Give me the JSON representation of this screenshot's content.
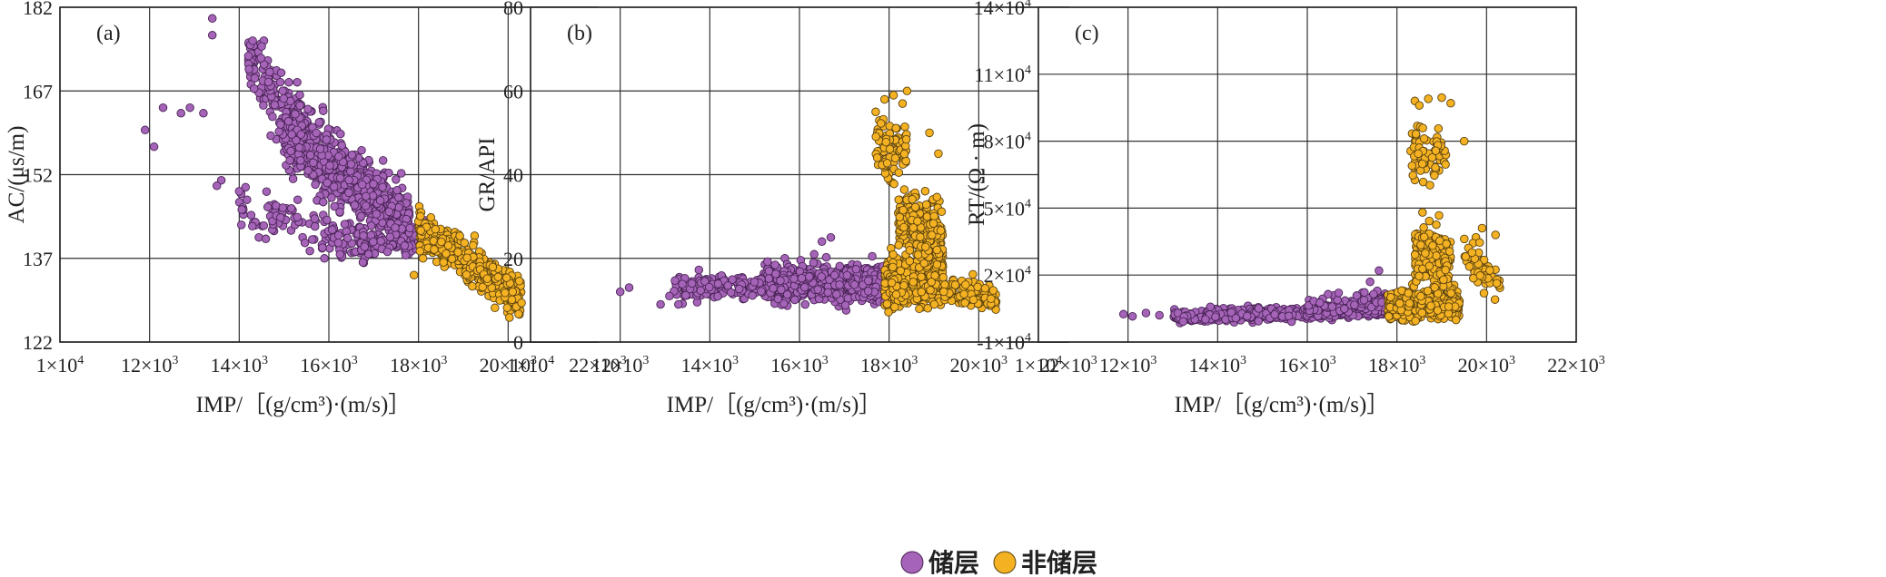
{
  "colors": {
    "reservoir": "#a564b8",
    "reservoir_edge": "#4a2456",
    "non_reservoir": "#f4b223",
    "non_reservoir_edge": "#5a4210",
    "grid": "#333333"
  },
  "legend": {
    "reservoir_label": "储层",
    "non_reservoir_label": "非储层"
  },
  "chart_data": [
    {
      "type": "scatter",
      "panel_label": "(a)",
      "xlabel": "IMP/［(g/cm³)·(m/s)］",
      "ylabel": "AC/(μs/m)",
      "xlim": [
        10000,
        22000
      ],
      "ylim": [
        122,
        182
      ],
      "x_tick_values": [
        10000,
        12000,
        14000,
        16000,
        18000,
        20000,
        22000
      ],
      "x_tick_labels": [
        {
          "base": "1×10",
          "sup": "4"
        },
        {
          "base": "12×10",
          "sup": "3"
        },
        {
          "base": "14×10",
          "sup": "3"
        },
        {
          "base": "16×10",
          "sup": "3"
        },
        {
          "base": "18×10",
          "sup": "3"
        },
        {
          "base": "20×10",
          "sup": "3"
        },
        {
          "base": "22×10",
          "sup": "3"
        }
      ],
      "y_tick_values": [
        122,
        137,
        152,
        167,
        182
      ],
      "y_tick_labels": [
        {
          "base": "122",
          "sup": ""
        },
        {
          "base": "137",
          "sup": ""
        },
        {
          "base": "152",
          "sup": ""
        },
        {
          "base": "167",
          "sup": ""
        },
        {
          "base": "182",
          "sup": ""
        }
      ],
      "series": [
        {
          "name": "储层",
          "clusters": [
            {
              "count": 750,
              "x_range": [
                15000,
                17800
              ],
              "y_at": [
                [
                  15000,
                  160
                ],
                [
                  17800,
                  143
                ]
              ],
              "spread": 6
            },
            {
              "count": 160,
              "x_range": [
                14200,
                15400
              ],
              "y_at": [
                [
                  14200,
                  172
                ],
                [
                  15400,
                  160
                ]
              ],
              "spread": 6
            },
            {
              "count": 110,
              "x_range": [
                14000,
                16800
              ],
              "y_at": [
                [
                  14000,
                  146
                ],
                [
                  16800,
                  140
                ]
              ],
              "spread": 4
            },
            {
              "count": 120,
              "x_range": [
                16200,
                18200
              ],
              "y_at": [
                [
                  16200,
                  139
                ],
                [
                  18200,
                  141
                ]
              ],
              "spread": 3
            }
          ],
          "points": [
            [
              13400,
              180
            ],
            [
              13400,
              177
            ],
            [
              11900,
              160
            ],
            [
              12100,
              157
            ],
            [
              12300,
              164
            ],
            [
              12700,
              163
            ],
            [
              12900,
              164
            ],
            [
              13200,
              163
            ],
            [
              13600,
              151
            ],
            [
              13500,
              150
            ],
            [
              14000,
              149
            ],
            [
              14300,
              176
            ],
            [
              14500,
              175
            ],
            [
              15900,
              137
            ]
          ]
        },
        {
          "name": "非储层",
          "clusters": [
            {
              "count": 560,
              "x_range": [
                18000,
                20300
              ],
              "y_at": [
                [
                  18000,
                  142
                ],
                [
                  20300,
                  130
                ]
              ],
              "spread": 3.2
            }
          ],
          "points": [
            [
              17900,
              134
            ],
            [
              18100,
              137
            ],
            [
              19200,
              132
            ],
            [
              20300,
              129
            ],
            [
              20100,
              131
            ]
          ]
        }
      ]
    },
    {
      "type": "scatter",
      "panel_label": "(b)",
      "xlabel": "IMP/［(g/cm³)·(m/s)］",
      "ylabel": "GR/API",
      "xlim": [
        10000,
        22000
      ],
      "ylim": [
        0,
        80
      ],
      "x_tick_values": [
        10000,
        12000,
        14000,
        16000,
        18000,
        20000,
        22000
      ],
      "x_tick_labels": [
        {
          "base": "1×10",
          "sup": "4"
        },
        {
          "base": "12×10",
          "sup": "3"
        },
        {
          "base": "14×10",
          "sup": "3"
        },
        {
          "base": "16×10",
          "sup": "3"
        },
        {
          "base": "18×10",
          "sup": "3"
        },
        {
          "base": "20×10",
          "sup": "3"
        },
        {
          "base": "22×10",
          "sup": "3"
        }
      ],
      "y_tick_values": [
        0,
        20,
        40,
        60,
        80
      ],
      "y_tick_labels": [
        {
          "base": "0",
          "sup": ""
        },
        {
          "base": "20",
          "sup": ""
        },
        {
          "base": "40",
          "sup": ""
        },
        {
          "base": "60",
          "sup": ""
        },
        {
          "base": "80",
          "sup": ""
        }
      ],
      "series": [
        {
          "name": "储层",
          "clusters": [
            {
              "count": 900,
              "x_range": [
                15200,
                18200
              ],
              "y_at": [
                [
                  15200,
                  14
                ],
                [
                  18200,
                  14
                ]
              ],
              "spread": 4
            },
            {
              "count": 150,
              "x_range": [
                13200,
                15200
              ],
              "y_at": [
                [
                  13200,
                  13
                ],
                [
                  15200,
                  14
                ]
              ],
              "spread": 3
            }
          ],
          "points": [
            [
              12000,
              12
            ],
            [
              12200,
              13
            ],
            [
              12900,
              9
            ],
            [
              13100,
              11
            ],
            [
              13300,
              9
            ],
            [
              13600,
              14
            ],
            [
              16700,
              25
            ],
            [
              16500,
              24
            ]
          ]
        },
        {
          "name": "非储层",
          "clusters": [
            {
              "count": 520,
              "x_range": [
                17900,
                19200
              ],
              "y_at": [
                [
                  17900,
                  14
                ],
                [
                  19200,
                  14
                ]
              ],
              "spread": 5
            },
            {
              "count": 300,
              "x_range": [
                18200,
                19200
              ],
              "y_at": [
                [
                  18200,
                  30
                ],
                [
                  19200,
                  24
                ]
              ],
              "spread": 8
            },
            {
              "count": 90,
              "x_range": [
                17700,
                18400
              ],
              "y_at": [
                [
                  17700,
                  46
                ],
                [
                  18400,
                  46
                ]
              ],
              "spread": 7
            },
            {
              "count": 130,
              "x_range": [
                19200,
                20400
              ],
              "y_at": [
                [
                  19200,
                  13
                ],
                [
                  20400,
                  10
                ]
              ],
              "spread": 3
            }
          ],
          "points": [
            [
              17900,
              58
            ],
            [
              18100,
              59
            ],
            [
              18400,
              60
            ],
            [
              18300,
              57
            ],
            [
              17700,
              55
            ],
            [
              18900,
              50
            ],
            [
              19100,
              45
            ]
          ]
        }
      ]
    },
    {
      "type": "scatter",
      "panel_label": "(c)",
      "xlabel": "IMP/［(g/cm³)·(m/s)］",
      "ylabel": "RT/(Ω · m)",
      "xlim": [
        10000,
        22000
      ],
      "ylim": [
        -10000,
        140000
      ],
      "x_tick_values": [
        10000,
        12000,
        14000,
        16000,
        18000,
        20000,
        22000
      ],
      "x_tick_labels": [
        {
          "base": "1×10",
          "sup": "4"
        },
        {
          "base": "12×10",
          "sup": "3"
        },
        {
          "base": "14×10",
          "sup": "3"
        },
        {
          "base": "16×10",
          "sup": "3"
        },
        {
          "base": "18×10",
          "sup": "3"
        },
        {
          "base": "20×10",
          "sup": "3"
        },
        {
          "base": "22×10",
          "sup": "3"
        }
      ],
      "y_tick_values": [
        -10000,
        20000,
        50000,
        80000,
        110000,
        140000
      ],
      "y_tick_labels": [
        {
          "base": "-1×10",
          "sup": "4"
        },
        {
          "base": "2×10",
          "sup": "4"
        },
        {
          "base": "5×10",
          "sup": "4"
        },
        {
          "base": "8×10",
          "sup": "4"
        },
        {
          "base": "11×10",
          "sup": "4"
        },
        {
          "base": "14×10",
          "sup": "4"
        }
      ],
      "series": [
        {
          "name": "储层",
          "clusters": [
            {
              "count": 650,
              "x_range": [
                13000,
                17800
              ],
              "y_at": [
                [
                  13000,
                  1500
                ],
                [
                  17800,
                  4000
                ]
              ],
              "spread": 2500
            },
            {
              "count": 250,
              "x_range": [
                16000,
                18200
              ],
              "y_at": [
                [
                  16000,
                  5000
                ],
                [
                  18200,
                  9000
                ]
              ],
              "spread": 4000
            }
          ],
          "points": [
            [
              11900,
              2500
            ],
            [
              12100,
              1500
            ],
            [
              12400,
              3000
            ],
            [
              12700,
              2000
            ],
            [
              16700,
              12000
            ],
            [
              17400,
              17000
            ],
            [
              17600,
              22000
            ]
          ]
        },
        {
          "name": "非储层",
          "clusters": [
            {
              "count": 600,
              "x_range": [
                17800,
                19400
              ],
              "y_at": [
                [
                  17800,
                  6000
                ],
                [
                  19400,
                  7000
                ]
              ],
              "spread": 5500
            },
            {
              "count": 220,
              "x_range": [
                18400,
                19200
              ],
              "y_at": [
                [
                  18400,
                  30000
                ],
                [
                  19200,
                  25000
                ]
              ],
              "spread": 14000
            },
            {
              "count": 70,
              "x_range": [
                18300,
                19100
              ],
              "y_at": [
                [
                  18300,
                  75000
                ],
                [
                  19100,
                  75000
                ]
              ],
              "spread": 12000
            },
            {
              "count": 60,
              "x_range": [
                19500,
                20300
              ],
              "y_at": [
                [
                  19500,
                  30000
                ],
                [
                  20300,
                  15000
                ]
              ],
              "spread": 8000
            }
          ],
          "points": [
            [
              18400,
              98000
            ],
            [
              18700,
              99000
            ],
            [
              19000,
              99500
            ],
            [
              19200,
              97000
            ],
            [
              18500,
              96000
            ],
            [
              19500,
              80000
            ],
            [
              19900,
              41000
            ],
            [
              20200,
              38000
            ]
          ]
        }
      ]
    }
  ]
}
